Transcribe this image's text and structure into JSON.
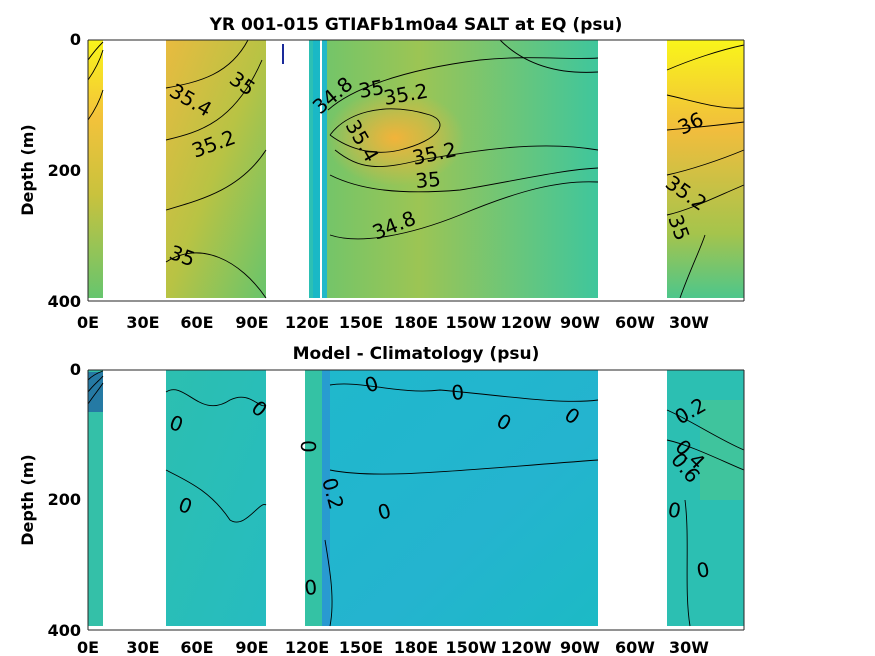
{
  "chart_data": [
    {
      "type": "heatmap",
      "title": "YR 001-015 GTIAFb1m0a4 SALT at EQ (psu)",
      "xlabel": "",
      "ylabel": "Depth (m)",
      "x_tick_labels": [
        "0E",
        "30E",
        "60E",
        "90E",
        "120E",
        "150E",
        "180E",
        "150W",
        "120W",
        "90W",
        "60W",
        "30W"
      ],
      "y_tick_labels": [
        "0",
        "200",
        "400"
      ],
      "ylim": [
        400,
        0
      ],
      "y_ticks": [
        0,
        200,
        400
      ],
      "contour_labels": [
        "35.4",
        "35",
        "35.2",
        "35",
        "34.8",
        "35",
        "35.2",
        "35.4",
        "35.2",
        "35",
        "34.8",
        "36",
        "35.2",
        "35"
      ]
    },
    {
      "type": "heatmap",
      "title": "Model - Climatology (psu)",
      "xlabel": "",
      "ylabel": "Depth (m)",
      "x_tick_labels": [
        "0E",
        "30E",
        "60E",
        "90E",
        "120E",
        "150E",
        "180E",
        "150W",
        "120W",
        "90W",
        "60W",
        "30W"
      ],
      "y_tick_labels": [
        "0",
        "200",
        "400"
      ],
      "ylim": [
        400,
        0
      ],
      "y_ticks": [
        0,
        200,
        400
      ],
      "contour_labels": [
        "0",
        "0",
        "0",
        "0",
        "0",
        "0",
        "0",
        "0",
        "0.2",
        "0",
        "0",
        "0.2",
        "0.4",
        "0.6",
        "0",
        "0"
      ]
    }
  ],
  "colors": {
    "background": "#ffffff",
    "text": "#000000",
    "low_salt": "#1ab5c8",
    "mid_salt": "#3fc88f",
    "high_salt": "#f5b93c",
    "max_salt": "#f9f51a"
  }
}
